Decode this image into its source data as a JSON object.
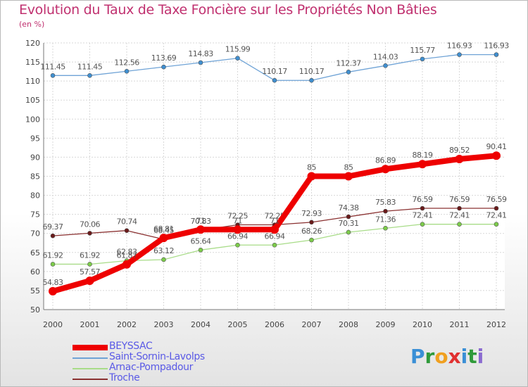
{
  "title": "Evolution du Taux de Taxe Foncière sur les Propriétés Non Bâties",
  "unit": "(en %)",
  "logo": {
    "letters": [
      "P",
      "r",
      "o",
      "x",
      "i",
      "t",
      "i"
    ],
    "colors": [
      "#3a8fd6",
      "#2f9a3a",
      "#f0a020",
      "#e03030",
      "#3a8fd6",
      "#2f9a3a",
      "#8a6ad0"
    ]
  },
  "chart_data": {
    "type": "line",
    "title": "Evolution du Taux de Taxe Foncière sur les Propriétés Non Bâties",
    "ylabel": "(en %)",
    "x": [
      2000,
      2001,
      2002,
      2003,
      2004,
      2005,
      2006,
      2007,
      2008,
      2009,
      2010,
      2011,
      2012
    ],
    "ylim": [
      50,
      120
    ],
    "yticks": [
      50,
      55,
      60,
      65,
      70,
      75,
      80,
      85,
      90,
      95,
      100,
      105,
      110,
      115,
      120
    ],
    "grid": true,
    "legend": "bottom-left",
    "series": [
      {
        "name": "Saint-Sornin-Lavolps",
        "color": "#6fa3d6",
        "marker": "#3f8fd0",
        "values": [
          111.45,
          111.45,
          112.56,
          113.69,
          114.83,
          115.99,
          110.17,
          110.17,
          112.37,
          114.03,
          115.77,
          116.93,
          116.93
        ],
        "labels": [
          "111.45",
          "111.45",
          "112.56",
          "113.69",
          "114.83",
          "115.99",
          "110.17",
          "110.17",
          "112.37",
          "114.03",
          "115.77",
          "116.93",
          "116.93"
        ]
      },
      {
        "name": "Troche",
        "color": "#8a3030",
        "marker": "#6a1a1a",
        "values": [
          69.37,
          70.06,
          70.74,
          68.45,
          70.83,
          72.25,
          72.25,
          72.93,
          74.38,
          75.83,
          76.59,
          76.59,
          76.59
        ],
        "labels": [
          "69.37",
          "70.06",
          "70.74",
          "68.45",
          "70.83",
          "72.25",
          "72.25",
          "72.93",
          "74.38",
          "75.83",
          "76.59",
          "76.59",
          "76.59"
        ]
      },
      {
        "name": "Arnac-Pompadour",
        "color": "#a8dc88",
        "marker": "#7ccc4a",
        "values": [
          61.92,
          61.92,
          62.83,
          63.12,
          65.64,
          66.94,
          66.94,
          68.26,
          70.31,
          71.36,
          72.41,
          72.41,
          72.41
        ],
        "labels": [
          "61.92",
          "61.92",
          "62.83",
          "63.12",
          "65.64",
          "66.94",
          "66.94",
          "68.26",
          "70.31",
          "71.36",
          "72.41",
          "72.41",
          "72.41"
        ]
      },
      {
        "name": "BEYSSAC",
        "color": "#ee0000",
        "marker": "#ee0000",
        "values": [
          54.83,
          57.57,
          61.87,
          68.81,
          71,
          71,
          71,
          85,
          85,
          86.89,
          88.19,
          89.52,
          90.41
        ],
        "labels": [
          "54.83",
          "57.57",
          "61.87",
          "68.81",
          "71",
          "71",
          "71",
          "85",
          "85",
          "86.89",
          "88.19",
          "89.52",
          "90.41"
        ]
      }
    ],
    "legend_order": [
      "BEYSSAC",
      "Saint-Sornin-Lavolps",
      "Arnac-Pompadour",
      "Troche"
    ]
  }
}
